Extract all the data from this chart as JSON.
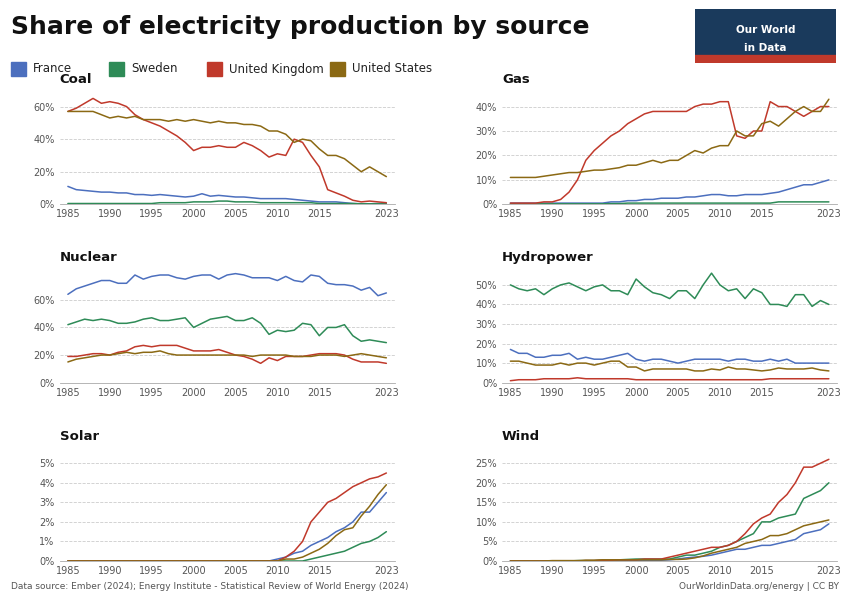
{
  "title": "Share of electricity production by source",
  "colors": {
    "France": "#4c6fbe",
    "Sweden": "#2e8b57",
    "United Kingdom": "#c0392b",
    "United States": "#8B6914"
  },
  "years": [
    1985,
    1986,
    1987,
    1988,
    1989,
    1990,
    1991,
    1992,
    1993,
    1994,
    1995,
    1996,
    1997,
    1998,
    1999,
    2000,
    2001,
    2002,
    2003,
    2004,
    2005,
    2006,
    2007,
    2008,
    2009,
    2010,
    2011,
    2012,
    2013,
    2014,
    2015,
    2016,
    2017,
    2018,
    2019,
    2020,
    2021,
    2022,
    2023
  ],
  "coal": {
    "France": [
      11.0,
      9.0,
      8.5,
      8.0,
      7.5,
      7.5,
      7.0,
      7.0,
      6.0,
      6.0,
      5.5,
      6.0,
      5.5,
      5.0,
      4.5,
      5.0,
      6.5,
      5.0,
      5.5,
      5.0,
      4.5,
      4.5,
      4.0,
      3.5,
      3.5,
      3.5,
      3.5,
      3.0,
      2.5,
      2.0,
      1.5,
      1.5,
      1.5,
      1.0,
      0.5,
      0.3,
      0.3,
      0.5,
      0.5
    ],
    "Sweden": [
      0.5,
      0.5,
      0.5,
      0.5,
      0.5,
      0.5,
      0.5,
      0.5,
      0.5,
      0.5,
      0.5,
      1.0,
      1.0,
      1.0,
      1.0,
      1.5,
      1.5,
      1.5,
      2.0,
      2.0,
      1.5,
      1.5,
      1.5,
      1.0,
      1.0,
      1.0,
      1.0,
      1.0,
      1.0,
      1.0,
      0.5,
      0.5,
      0.5,
      0.5,
      0.5,
      0.3,
      0.3,
      0.3,
      0.3
    ],
    "United Kingdom": [
      57.0,
      59.0,
      62.0,
      65.0,
      62.0,
      63.0,
      62.0,
      60.0,
      55.0,
      52.0,
      50.0,
      48.0,
      45.0,
      42.0,
      38.0,
      33.0,
      35.0,
      35.0,
      36.0,
      35.0,
      35.0,
      38.0,
      36.0,
      33.0,
      29.0,
      31.0,
      30.0,
      40.0,
      38.0,
      30.0,
      23.0,
      9.0,
      7.0,
      5.0,
      2.5,
      1.5,
      2.0,
      1.5,
      1.0
    ],
    "United States": [
      57.0,
      57.0,
      57.0,
      57.0,
      55.0,
      53.0,
      54.0,
      53.0,
      54.0,
      52.0,
      52.0,
      52.0,
      51.0,
      52.0,
      51.0,
      52.0,
      51.0,
      50.0,
      51.0,
      50.0,
      50.0,
      49.0,
      49.0,
      48.0,
      45.0,
      45.0,
      43.0,
      38.0,
      40.0,
      39.0,
      34.0,
      30.0,
      30.0,
      28.0,
      24.0,
      20.0,
      23.0,
      20.0,
      17.0
    ]
  },
  "gas": {
    "France": [
      0.5,
      0.5,
      0.5,
      0.5,
      0.5,
      0.5,
      0.5,
      0.5,
      0.5,
      0.5,
      0.5,
      0.5,
      1.0,
      1.0,
      1.5,
      1.5,
      2.0,
      2.0,
      2.5,
      2.5,
      2.5,
      3.0,
      3.0,
      3.5,
      4.0,
      4.0,
      3.5,
      3.5,
      4.0,
      4.0,
      4.0,
      4.5,
      5.0,
      6.0,
      7.0,
      8.0,
      8.0,
      9.0,
      10.0
    ],
    "Sweden": [
      0.2,
      0.2,
      0.2,
      0.2,
      0.2,
      0.2,
      0.2,
      0.2,
      0.2,
      0.2,
      0.2,
      0.2,
      0.3,
      0.3,
      0.5,
      0.5,
      0.5,
      0.5,
      0.5,
      0.5,
      0.5,
      0.5,
      0.5,
      0.5,
      0.5,
      0.5,
      0.5,
      0.5,
      0.5,
      0.5,
      0.5,
      0.5,
      1.0,
      1.0,
      1.0,
      1.0,
      1.0,
      1.0,
      1.0
    ],
    "United Kingdom": [
      0.5,
      0.5,
      0.5,
      0.5,
      1.0,
      1.0,
      2.0,
      5.0,
      10.0,
      18.0,
      22.0,
      25.0,
      28.0,
      30.0,
      33.0,
      35.0,
      37.0,
      38.0,
      38.0,
      38.0,
      38.0,
      38.0,
      40.0,
      41.0,
      41.0,
      42.0,
      42.0,
      28.0,
      27.0,
      30.0,
      30.0,
      42.0,
      40.0,
      40.0,
      38.0,
      36.0,
      38.0,
      40.0,
      40.0
    ],
    "United States": [
      11.0,
      11.0,
      11.0,
      11.0,
      11.5,
      12.0,
      12.5,
      13.0,
      13.0,
      13.5,
      14.0,
      14.0,
      14.5,
      15.0,
      16.0,
      16.0,
      17.0,
      18.0,
      17.0,
      18.0,
      18.0,
      20.0,
      22.0,
      21.0,
      23.0,
      24.0,
      24.0,
      30.0,
      28.0,
      28.0,
      33.0,
      34.0,
      32.0,
      35.0,
      38.0,
      40.0,
      38.0,
      38.0,
      43.0
    ]
  },
  "nuclear": {
    "France": [
      64.0,
      68.0,
      70.0,
      72.0,
      74.0,
      74.0,
      72.0,
      72.0,
      78.0,
      75.0,
      77.0,
      78.0,
      78.0,
      76.0,
      75.0,
      77.0,
      78.0,
      78.0,
      75.0,
      78.0,
      79.0,
      78.0,
      76.0,
      76.0,
      76.0,
      74.0,
      77.0,
      74.0,
      73.0,
      78.0,
      77.0,
      72.0,
      71.0,
      71.0,
      70.0,
      67.0,
      69.0,
      63.0,
      65.0
    ],
    "Sweden": [
      42.0,
      44.0,
      46.0,
      45.0,
      46.0,
      45.0,
      43.0,
      43.0,
      44.0,
      46.0,
      47.0,
      45.0,
      45.0,
      46.0,
      47.0,
      40.0,
      43.0,
      46.0,
      47.0,
      48.0,
      45.0,
      45.0,
      47.0,
      43.0,
      35.0,
      38.0,
      37.0,
      38.0,
      43.0,
      42.0,
      34.0,
      40.0,
      40.0,
      42.0,
      34.0,
      30.0,
      31.0,
      30.0,
      29.0
    ],
    "United Kingdom": [
      19.0,
      19.0,
      20.0,
      21.0,
      21.0,
      20.0,
      22.0,
      23.0,
      26.0,
      27.0,
      26.0,
      27.0,
      27.0,
      27.0,
      25.0,
      23.0,
      23.0,
      23.0,
      24.0,
      22.0,
      20.0,
      19.0,
      17.0,
      14.0,
      18.0,
      16.0,
      19.0,
      19.0,
      19.0,
      20.0,
      21.0,
      21.0,
      21.0,
      20.0,
      17.0,
      15.0,
      15.0,
      15.0,
      14.0
    ],
    "United States": [
      15.0,
      17.0,
      18.0,
      19.0,
      20.0,
      20.0,
      21.0,
      22.0,
      21.0,
      22.0,
      22.0,
      23.0,
      21.0,
      20.0,
      20.0,
      20.0,
      20.0,
      20.0,
      20.0,
      20.0,
      20.0,
      20.0,
      19.0,
      20.0,
      20.0,
      20.0,
      20.0,
      19.0,
      19.0,
      19.0,
      20.0,
      20.0,
      20.0,
      19.0,
      20.0,
      21.0,
      20.0,
      19.0,
      18.0
    ]
  },
  "hydro": {
    "France": [
      17.0,
      15.0,
      15.0,
      13.0,
      13.0,
      14.0,
      14.0,
      15.0,
      12.0,
      13.0,
      12.0,
      12.0,
      13.0,
      14.0,
      15.0,
      12.0,
      11.0,
      12.0,
      12.0,
      11.0,
      10.0,
      11.0,
      12.0,
      12.0,
      12.0,
      12.0,
      11.0,
      12.0,
      12.0,
      11.0,
      11.0,
      12.0,
      11.0,
      12.0,
      10.0,
      10.0,
      10.0,
      10.0,
      10.0
    ],
    "Sweden": [
      50.0,
      48.0,
      47.0,
      48.0,
      45.0,
      48.0,
      50.0,
      51.0,
      49.0,
      47.0,
      49.0,
      50.0,
      47.0,
      47.0,
      45.0,
      53.0,
      49.0,
      46.0,
      45.0,
      43.0,
      47.0,
      47.0,
      43.0,
      50.0,
      56.0,
      50.0,
      47.0,
      48.0,
      43.0,
      48.0,
      46.0,
      40.0,
      40.0,
      39.0,
      45.0,
      45.0,
      39.0,
      42.0,
      40.0
    ],
    "United Kingdom": [
      1.0,
      1.5,
      1.5,
      1.5,
      2.0,
      2.0,
      2.0,
      2.0,
      2.5,
      2.0,
      2.0,
      2.0,
      2.0,
      2.0,
      2.0,
      1.5,
      1.5,
      1.5,
      1.5,
      1.5,
      1.5,
      1.5,
      1.5,
      1.5,
      1.5,
      1.5,
      1.5,
      1.5,
      1.5,
      1.5,
      1.5,
      2.0,
      2.0,
      2.0,
      2.0,
      2.0,
      2.0,
      2.0,
      2.0
    ],
    "United States": [
      11.0,
      11.0,
      10.0,
      9.0,
      9.0,
      9.0,
      10.0,
      9.0,
      10.0,
      10.0,
      9.0,
      10.0,
      11.0,
      11.0,
      8.0,
      8.0,
      6.0,
      7.0,
      7.0,
      7.0,
      7.0,
      7.0,
      6.0,
      6.0,
      7.0,
      6.5,
      8.0,
      7.0,
      7.0,
      6.5,
      6.0,
      6.5,
      7.5,
      7.0,
      7.0,
      7.0,
      7.5,
      6.5,
      6.0
    ]
  },
  "solar": {
    "France": [
      0.0,
      0.0,
      0.0,
      0.0,
      0.0,
      0.0,
      0.0,
      0.0,
      0.0,
      0.0,
      0.0,
      0.0,
      0.0,
      0.0,
      0.0,
      0.0,
      0.0,
      0.0,
      0.0,
      0.0,
      0.0,
      0.0,
      0.0,
      0.0,
      0.0,
      0.1,
      0.2,
      0.4,
      0.5,
      0.8,
      1.0,
      1.2,
      1.5,
      1.7,
      2.0,
      2.5,
      2.5,
      3.0,
      3.5
    ],
    "Sweden": [
      0.0,
      0.0,
      0.0,
      0.0,
      0.0,
      0.0,
      0.0,
      0.0,
      0.0,
      0.0,
      0.0,
      0.0,
      0.0,
      0.0,
      0.0,
      0.0,
      0.0,
      0.0,
      0.0,
      0.0,
      0.0,
      0.0,
      0.0,
      0.0,
      0.0,
      0.0,
      0.0,
      0.0,
      0.0,
      0.1,
      0.2,
      0.3,
      0.4,
      0.5,
      0.7,
      0.9,
      1.0,
      1.2,
      1.5
    ],
    "United Kingdom": [
      0.0,
      0.0,
      0.0,
      0.0,
      0.0,
      0.0,
      0.0,
      0.0,
      0.0,
      0.0,
      0.0,
      0.0,
      0.0,
      0.0,
      0.0,
      0.0,
      0.0,
      0.0,
      0.0,
      0.0,
      0.0,
      0.0,
      0.0,
      0.0,
      0.0,
      0.0,
      0.2,
      0.5,
      1.0,
      2.0,
      2.5,
      3.0,
      3.2,
      3.5,
      3.8,
      4.0,
      4.2,
      4.3,
      4.5
    ],
    "United States": [
      0.0,
      0.0,
      0.0,
      0.0,
      0.0,
      0.0,
      0.0,
      0.0,
      0.0,
      0.0,
      0.0,
      0.0,
      0.0,
      0.0,
      0.0,
      0.0,
      0.0,
      0.0,
      0.0,
      0.0,
      0.0,
      0.0,
      0.0,
      0.0,
      0.0,
      0.0,
      0.1,
      0.1,
      0.2,
      0.4,
      0.6,
      0.9,
      1.3,
      1.6,
      1.7,
      2.3,
      2.8,
      3.4,
      3.9
    ]
  },
  "wind": {
    "France": [
      0.0,
      0.0,
      0.0,
      0.0,
      0.0,
      0.0,
      0.0,
      0.0,
      0.0,
      0.0,
      0.0,
      0.0,
      0.0,
      0.1,
      0.1,
      0.1,
      0.1,
      0.2,
      0.2,
      0.3,
      0.5,
      0.8,
      1.0,
      1.2,
      1.5,
      2.0,
      2.5,
      3.0,
      3.0,
      3.5,
      4.0,
      4.0,
      4.5,
      5.0,
      5.5,
      7.0,
      7.5,
      8.0,
      9.5
    ],
    "Sweden": [
      0.0,
      0.0,
      0.0,
      0.0,
      0.0,
      0.0,
      0.0,
      0.0,
      0.1,
      0.1,
      0.1,
      0.2,
      0.2,
      0.3,
      0.4,
      0.5,
      0.5,
      0.5,
      0.5,
      0.5,
      1.0,
      1.5,
      1.5,
      2.0,
      2.5,
      3.5,
      4.0,
      5.0,
      6.0,
      7.0,
      10.0,
      10.0,
      11.0,
      11.5,
      12.0,
      16.0,
      17.0,
      18.0,
      20.0
    ],
    "United Kingdom": [
      0.0,
      0.0,
      0.0,
      0.0,
      0.0,
      0.0,
      0.0,
      0.0,
      0.0,
      0.1,
      0.1,
      0.2,
      0.2,
      0.3,
      0.3,
      0.3,
      0.5,
      0.5,
      0.5,
      1.0,
      1.5,
      2.0,
      2.5,
      3.0,
      3.5,
      3.5,
      4.0,
      5.0,
      7.0,
      9.5,
      11.0,
      12.0,
      15.0,
      17.0,
      20.0,
      24.0,
      24.0,
      25.0,
      26.0
    ],
    "United States": [
      0.0,
      0.0,
      0.0,
      0.0,
      0.0,
      0.1,
      0.1,
      0.1,
      0.1,
      0.2,
      0.2,
      0.3,
      0.3,
      0.3,
      0.3,
      0.3,
      0.3,
      0.3,
      0.3,
      0.4,
      0.4,
      0.5,
      0.8,
      1.3,
      2.0,
      2.5,
      3.0,
      3.5,
      4.5,
      5.0,
      5.5,
      6.5,
      6.5,
      7.0,
      8.0,
      9.0,
      9.5,
      10.0,
      10.5
    ]
  },
  "subplots": [
    {
      "key": "coal",
      "title": "Coal",
      "ylim": [
        0,
        72
      ],
      "yticks": [
        0,
        20,
        40,
        60
      ],
      "ytick_labels": [
        "0%",
        "20%",
        "40%",
        "60%"
      ]
    },
    {
      "key": "gas",
      "title": "Gas",
      "ylim": [
        0,
        48
      ],
      "yticks": [
        0,
        10,
        20,
        30,
        40
      ],
      "ytick_labels": [
        "0%",
        "10%",
        "20%",
        "30%",
        "40%"
      ]
    },
    {
      "key": "nuclear",
      "title": "Nuclear",
      "ylim": [
        0,
        85
      ],
      "yticks": [
        0,
        20,
        40,
        60
      ],
      "ytick_labels": [
        "0%",
        "20%",
        "40%",
        "60%"
      ]
    },
    {
      "key": "hydro",
      "title": "Hydropower",
      "ylim": [
        0,
        60
      ],
      "yticks": [
        0,
        10,
        20,
        30,
        40,
        50
      ],
      "ytick_labels": [
        "0%",
        "10%",
        "20%",
        "30%",
        "40%",
        "50%"
      ]
    },
    {
      "key": "solar",
      "title": "Solar",
      "ylim": [
        0,
        6
      ],
      "yticks": [
        0,
        1,
        2,
        3,
        4,
        5
      ],
      "ytick_labels": [
        "0%",
        "1%",
        "2%",
        "3%",
        "4%",
        "5%"
      ]
    },
    {
      "key": "wind",
      "title": "Wind",
      "ylim": [
        0,
        30
      ],
      "yticks": [
        0,
        5,
        10,
        15,
        20,
        25
      ],
      "ytick_labels": [
        "0%",
        "5%",
        "10%",
        "15%",
        "20%",
        "25%"
      ]
    }
  ],
  "countries": [
    "France",
    "Sweden",
    "United Kingdom",
    "United States"
  ],
  "footer_source": "Data source: Ember (2024); Energy Institute - Statistical Review of World Energy (2024)",
  "footer_url": "OurWorldinData.org/energy | CC BY",
  "logo_text1": "Our World",
  "logo_text2": "in Data",
  "logo_bg": "#1a3a5c",
  "logo_stripe": "#c0392b",
  "bg_color": "#ffffff",
  "grid_color": "#cccccc",
  "xtick_years": [
    1985,
    1990,
    1995,
    2000,
    2005,
    2010,
    2015,
    2023
  ]
}
